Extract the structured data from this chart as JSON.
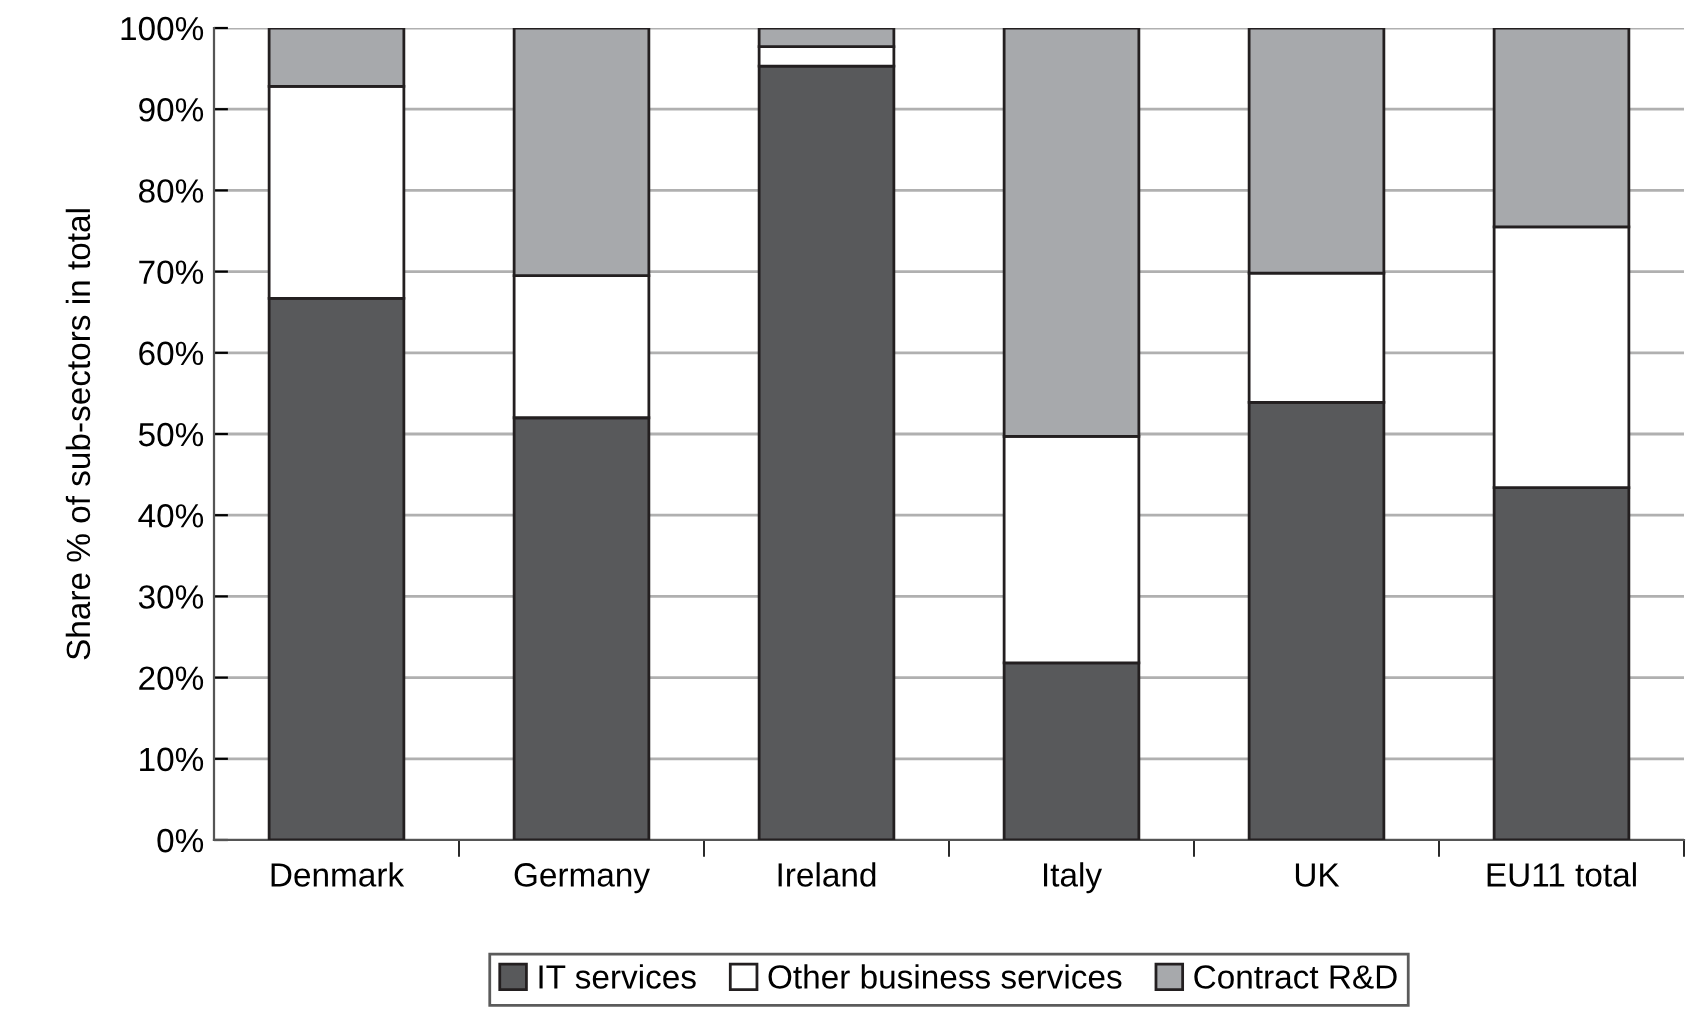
{
  "chart_data": {
    "type": "bar",
    "stacked": true,
    "ylabel": "Share % of sub-sectors in total",
    "categories": [
      "Denmark",
      "Germany",
      "Ireland",
      "Italy",
      "UK",
      "EU11 total"
    ],
    "series": [
      {
        "name": "IT services",
        "color": "#58595b",
        "values": [
          66.7,
          52.0,
          95.3,
          21.8,
          53.9,
          43.4
        ]
      },
      {
        "name": "Other business services",
        "color": "#ffffff",
        "values": [
          26.1,
          17.5,
          2.4,
          27.9,
          15.9,
          32.1
        ]
      },
      {
        "name": "Contract R&D",
        "color": "#a7a9ac",
        "values": [
          7.2,
          30.5,
          2.3,
          50.3,
          30.2,
          24.5
        ]
      }
    ],
    "ylim": [
      0,
      100
    ],
    "yticks": [
      {
        "value": 0,
        "label": "0%"
      },
      {
        "value": 10,
        "label": "10%"
      },
      {
        "value": 20,
        "label": "20%"
      },
      {
        "value": 30,
        "label": "30%"
      },
      {
        "value": 40,
        "label": "40%"
      },
      {
        "value": 50,
        "label": "50%"
      },
      {
        "value": 60,
        "label": "60%"
      },
      {
        "value": 70,
        "label": "70%"
      },
      {
        "value": 80,
        "label": "80%"
      },
      {
        "value": 90,
        "label": "90%"
      },
      {
        "value": 100,
        "label": "100%"
      }
    ],
    "grid": "y",
    "legend": "bottom"
  }
}
